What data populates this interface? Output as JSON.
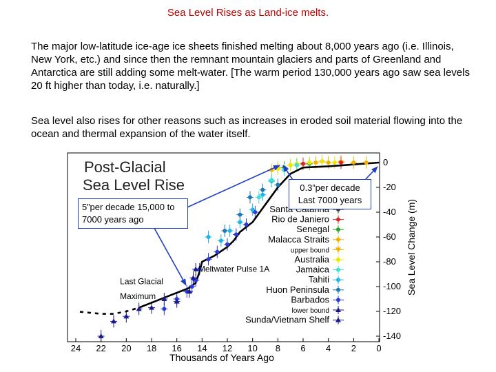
{
  "slide": {
    "title": "Sea Level Rises as Land-ice melts.",
    "paragraph1": "The major low-latitude ice-age ice sheets finished melting about 8,000 years ago (i.e. Illinois, New York, etc.) and since then the remnant mountain glaciers and parts of Greenland and Antarctica are still adding some melt-water.  [The warm period 130,000 years ago saw sea levels 20 ft higher than today, i.e. naturally.]",
    "paragraph2": "Sea level also rises for other reasons such as increases in eroded soil material flowing into the ocean and thermal expansion of the water itself.",
    "callout_left": "5”per decade 15,000 to 7000 years ago",
    "callout_right": "0.3”per decade Last 7000 years"
  },
  "colors": {
    "title": "#c00000",
    "callout_border": "#1f3fbf",
    "arrow": "#1f3fbf"
  },
  "chart_data": {
    "type": "scatter",
    "title": "Post-Glacial",
    "subtitle": "Sea Level Rise",
    "xlabel": "Thousands of Years Ago",
    "ylabel": "Sea Level Change (m)",
    "xlim": [
      24,
      0
    ],
    "ylim": [
      -150,
      5
    ],
    "x_ticks": [
      "24",
      "22",
      "20",
      "18",
      "16",
      "14",
      "12",
      "10",
      "8",
      "6",
      "4",
      "2",
      "0"
    ],
    "y_ticks": [
      "0",
      "-20",
      "-40",
      "-60",
      "-80",
      "-100",
      "-120",
      "-140"
    ],
    "annotations": [
      {
        "text": "Meltwater Pulse 1A",
        "x": 14.3,
        "y": -88
      },
      {
        "text": "Last Glacial",
        "x": 20.5,
        "y": -98
      },
      {
        "text": "Maximum",
        "x": 20.5,
        "y": -110
      }
    ],
    "legend_position": "right",
    "legend": [
      {
        "name": "Santa Catarina",
        "color": "#3d3d3d",
        "marker": "circle"
      },
      {
        "name": "Rio de Janiero",
        "color": "#d62728",
        "marker": "circle"
      },
      {
        "name": "Senegal",
        "color": "#2ca02c",
        "marker": "circle"
      },
      {
        "name": "Malacca Straits",
        "color": "#f0b000",
        "marker": "circle"
      },
      {
        "name": "upper bound",
        "color": "#f0b000",
        "marker": "triangle-down"
      },
      {
        "name": "Australia",
        "color": "#e8e800",
        "marker": "circle"
      },
      {
        "name": "Jamaica",
        "color": "#40e0d0",
        "marker": "circle"
      },
      {
        "name": "Tahiti",
        "color": "#1fb4e8",
        "marker": "circle"
      },
      {
        "name": "Huon Peninsula",
        "color": "#1f77b4",
        "marker": "circle"
      },
      {
        "name": "Barbados",
        "color": "#2b3bd6",
        "marker": "circle"
      },
      {
        "name": "lower bound",
        "color": "#1a1a8a",
        "marker": "triangle-up"
      },
      {
        "name": "Sunda/Vietnam Shelf",
        "color": "#1a1a8a",
        "marker": "triangle-up"
      }
    ],
    "trend_line": {
      "x": [
        24,
        22,
        21,
        20,
        19,
        18,
        17,
        16,
        15,
        14.5,
        14.2,
        14,
        13,
        12,
        11.5,
        11,
        10,
        9,
        8,
        7,
        6,
        4,
        2,
        0
      ],
      "y": [
        -120,
        -122,
        -122,
        -120,
        -117,
        -113,
        -109,
        -105,
        -101,
        -97,
        -88,
        -80,
        -75,
        -68,
        -63,
        -56,
        -48,
        -34,
        -20,
        -9,
        -4,
        -3,
        -1.5,
        0
      ]
    },
    "series": [
      {
        "name": "Barbados",
        "color": "#2b3bd6",
        "marker": "circle",
        "x": [
          17.0,
          16.0,
          15.2,
          14.8,
          14.5,
          14.2,
          13.5,
          12.8,
          12.0,
          11.3,
          10.5,
          9.8
        ],
        "y": [
          -118,
          -110,
          -104,
          -100,
          -95,
          -86,
          -78,
          -72,
          -66,
          -58,
          -50,
          -40
        ]
      },
      {
        "name": "Tahiti",
        "color": "#1fb4e8",
        "marker": "circle",
        "x": [
          13.5,
          12.5,
          11.8,
          11.0,
          10.0,
          9.2,
          8.5
        ],
        "y": [
          -60,
          -63,
          -55,
          -48,
          -38,
          -26,
          -15
        ]
      },
      {
        "name": "Huon Peninsula",
        "color": "#1f77b4",
        "marker": "circle",
        "x": [
          12.2,
          11.0,
          10.2,
          9.2,
          8.0
        ],
        "y": [
          -55,
          -42,
          -28,
          -22,
          -18
        ]
      },
      {
        "name": "Sunda/Vietnam Shelf",
        "color": "#1a1a8a",
        "marker": "triangle-up",
        "x": [
          22.0,
          21.0,
          20.0,
          19.0,
          18.0,
          17.0,
          16.0,
          15.0,
          14.7,
          14.5
        ],
        "y": [
          -140,
          -128,
          -124,
          -118,
          -117,
          -110,
          -112,
          -104,
          -93,
          -86
        ]
      },
      {
        "name": "Malacca Straits",
        "color": "#f0b000",
        "marker": "circle",
        "x": [
          8.5,
          8.0,
          7.0,
          6.0,
          5.0,
          4.0,
          3.0,
          2.0,
          1.0
        ],
        "y": [
          -6,
          -4,
          -2,
          -1,
          0,
          0,
          1,
          0,
          0
        ]
      },
      {
        "name": "Senegal",
        "color": "#2ca02c",
        "marker": "circle",
        "x": [
          7.5,
          6.5,
          5.5
        ],
        "y": [
          -4,
          -2,
          -1
        ]
      },
      {
        "name": "Rio de Janiero",
        "color": "#d62728",
        "marker": "circle",
        "x": [
          6.0,
          4.5,
          3.0
        ],
        "y": [
          -1,
          1,
          0
        ]
      },
      {
        "name": "Australia",
        "color": "#e8e800",
        "marker": "circle",
        "x": [
          8.0,
          7.0,
          6.5,
          5.5,
          4.5,
          3.5
        ],
        "y": [
          -5,
          -2,
          -1,
          0,
          1,
          0
        ]
      },
      {
        "name": "Jamaica",
        "color": "#40e0d0",
        "marker": "circle",
        "x": [
          9.5,
          8.5,
          7.5,
          6.5
        ],
        "y": [
          -28,
          -14,
          -6,
          -2
        ]
      }
    ]
  }
}
